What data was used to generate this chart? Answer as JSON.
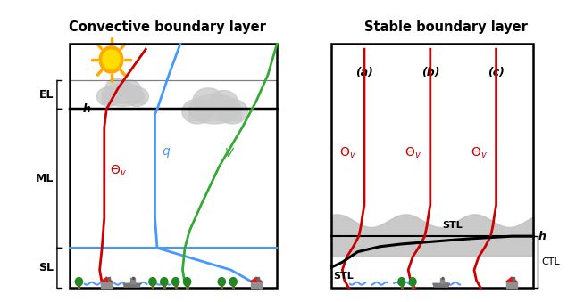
{
  "title_left": "Convective boundary layer",
  "title_right": "Stable boundary layer",
  "layer_colors": {
    "red": "#cc0000",
    "blue": "#4499ff",
    "green": "#33aa33",
    "black": "#000000",
    "gray": "#888888",
    "light_gray": "#cccccc",
    "sun_yellow": "#ffdd00",
    "sun_orange": "#ffaa00",
    "tree_green": "#228822",
    "house_red": "#cc2222",
    "water_blue": "#5599ff"
  },
  "bg_color": "#ffffff",
  "left_bracket_labels": [
    "EL",
    "ML",
    "SL"
  ],
  "right_abc_labels": [
    "(a)",
    "(b)",
    "(c)"
  ],
  "h_label": "h",
  "ctL_label": "CTL",
  "stl_label": "STL",
  "theta_label": "$\\Theta_v$",
  "q_label": "$q$",
  "v_label": "$V$"
}
